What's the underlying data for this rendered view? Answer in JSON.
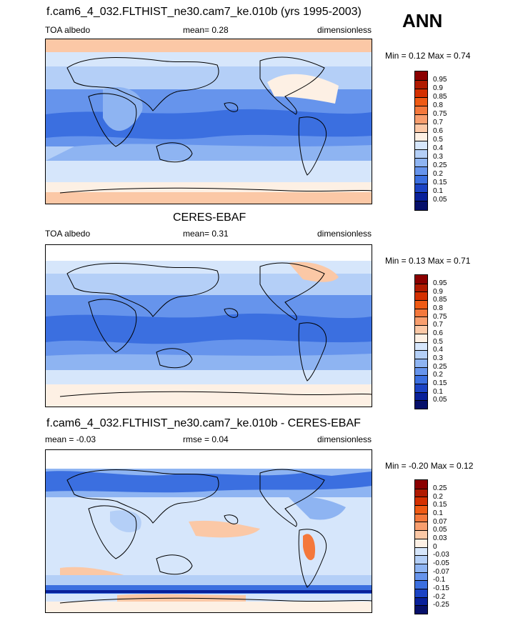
{
  "season": "ANN",
  "panels": [
    {
      "title": "f.cam6_4_032.FLTHIST_ne30.cam7_ke.010b (yrs 1995-2003)",
      "left": "TOA albedo",
      "center": "mean=   0.28",
      "right": "dimensionless",
      "minmax": "Min =   0.12 Max =   0.74",
      "levels": [
        "0.95",
        "0.9",
        "0.85",
        "0.8",
        "0.75",
        "0.7",
        "0.6",
        "0.5",
        "0.4",
        "0.3",
        "0.25",
        "0.2",
        "0.15",
        "0.1",
        "0.05"
      ],
      "colors": [
        "#8b0000",
        "#b01a00",
        "#d43000",
        "#ef5a14",
        "#f4783c",
        "#f89e6e",
        "#fbc8a6",
        "#fdf0e4",
        "#d6e6fb",
        "#b4cff7",
        "#8eb4f2",
        "#6694ec",
        "#3b6fe0",
        "#1b43c4",
        "#08209a",
        "#06106a"
      ]
    },
    {
      "title": "CERES-EBAF",
      "left": "TOA albedo",
      "center": "mean=   0.31",
      "right": "dimensionless",
      "minmax": "Min =   0.13 Max =   0.71",
      "levels": [
        "0.95",
        "0.9",
        "0.85",
        "0.8",
        "0.75",
        "0.7",
        "0.6",
        "0.5",
        "0.4",
        "0.3",
        "0.25",
        "0.2",
        "0.15",
        "0.1",
        "0.05"
      ],
      "colors": [
        "#8b0000",
        "#b01a00",
        "#d43000",
        "#ef5a14",
        "#f4783c",
        "#f89e6e",
        "#fbc8a6",
        "#fdf0e4",
        "#d6e6fb",
        "#b4cff7",
        "#8eb4f2",
        "#6694ec",
        "#3b6fe0",
        "#1b43c4",
        "#08209a",
        "#06106a"
      ]
    },
    {
      "title": "f.cam6_4_032.FLTHIST_ne30.cam7_ke.010b - CERES-EBAF",
      "left": "mean =  -0.03",
      "center": "rmse =   0.04",
      "right": "dimensionless",
      "minmax": "Min =  -0.20 Max =   0.12",
      "levels": [
        "0.25",
        "0.2",
        "0.15",
        "0.1",
        "0.07",
        "0.05",
        "0.03",
        "0",
        "-0.03",
        "-0.05",
        "-0.07",
        "-0.1",
        "-0.15",
        "-0.2",
        "-0.25"
      ],
      "colors": [
        "#8b0000",
        "#b01a00",
        "#d43000",
        "#ef5a14",
        "#f4783c",
        "#f89e6e",
        "#fbc8a6",
        "#fdf0e4",
        "#d6e6fb",
        "#b4cff7",
        "#8eb4f2",
        "#6694ec",
        "#3b6fe0",
        "#1b43c4",
        "#08209a",
        "#06106a"
      ]
    }
  ]
}
